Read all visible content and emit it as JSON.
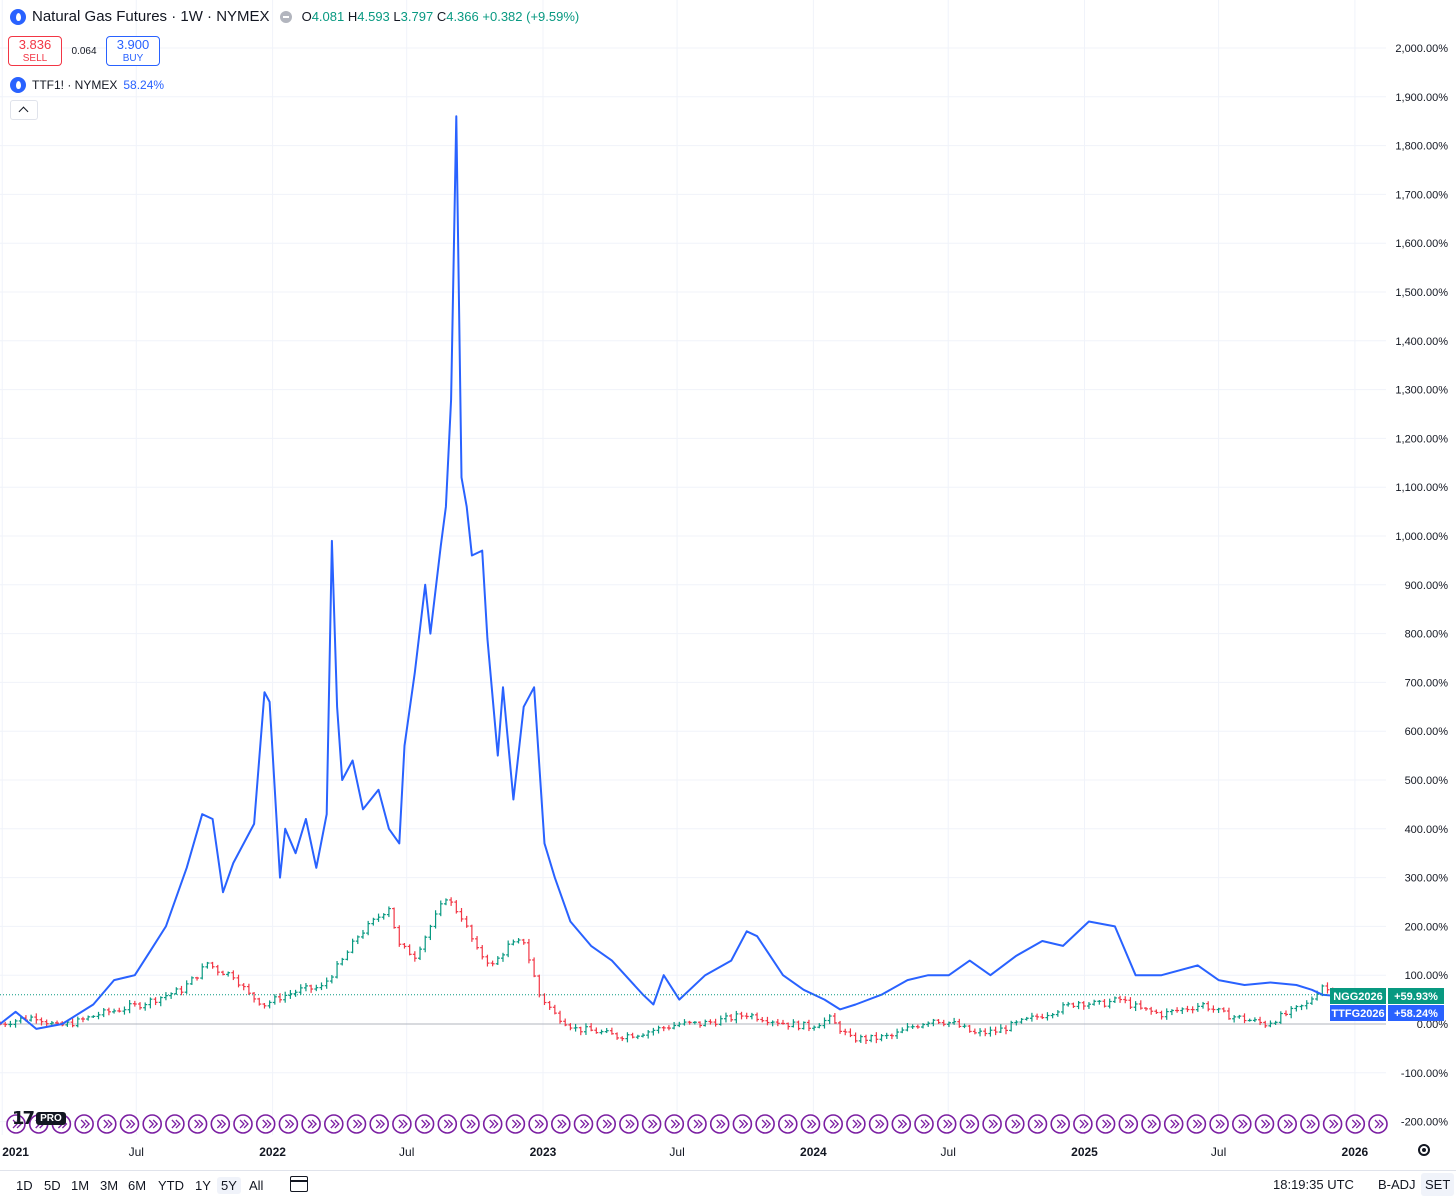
{
  "header": {
    "title": "Natural Gas Futures · 1W · NYMEX",
    "open_label": "O",
    "open": "4.081",
    "high_label": "H",
    "high": "4.593",
    "low_label": "L",
    "low": "3.797",
    "close_label": "C",
    "close": "4.366",
    "change": "+0.382 (+9.59%)"
  },
  "trade": {
    "sell_price": "3.836",
    "sell_label": "SELL",
    "spread": "0.064",
    "buy_price": "3.900",
    "buy_label": "BUY"
  },
  "compare": {
    "symbol": "TTF1! · NYMEX",
    "change": "58.24%"
  },
  "logo": {
    "badge": "PRO"
  },
  "bottom_bar": {
    "ranges": [
      "1D",
      "5D",
      "1M",
      "3M",
      "6M",
      "YTD",
      "1Y",
      "5Y",
      "All"
    ],
    "active_range": "5Y",
    "clock": "18:19:35 UTC",
    "badj": "B-ADJ",
    "session": "SET"
  },
  "colors": {
    "up": "#089981",
    "down": "#f23645",
    "ttf_line": "#2962ff",
    "ngg_label_bg": "#089981",
    "ttf_label_bg": "#2962ff",
    "event_icon": "#7b1fa2"
  },
  "chart_data": {
    "type": "line",
    "y_scale": "percent",
    "ylim": [
      -200,
      2000
    ],
    "y_ticks": [
      -200,
      -100,
      0,
      100,
      200,
      300,
      400,
      500,
      600,
      700,
      800,
      900,
      1000,
      1100,
      1200,
      1300,
      1400,
      1500,
      1600,
      1700,
      1800,
      1900,
      2000
    ],
    "y_tick_labels": [
      "-200.00%",
      "-100.00%",
      "0.00%",
      "100.00%",
      "200.00%",
      "300.00%",
      "400.00%",
      "500.00%",
      "600.00%",
      "700.00%",
      "800.00%",
      "900.00%",
      "1,000.00%",
      "1,100.00%",
      "1,200.00%",
      "1,300.00%",
      "1,400.00%",
      "1,500.00%",
      "1,600.00%",
      "1,700.00%",
      "1,800.00%",
      "1,900.00%",
      "2,000.00%"
    ],
    "x_tick_labels": [
      "2021",
      "Jul",
      "2022",
      "Jul",
      "2023",
      "Jul",
      "2024",
      "Jul",
      "2025",
      "Jul",
      "2026"
    ],
    "x_ticks": [
      "2021-01",
      "2021-07",
      "2022-01",
      "2022-07",
      "2023-01",
      "2023-07",
      "2024-01",
      "2024-07",
      "2025-01",
      "2025-07",
      "2026-01"
    ],
    "xlim": [
      "2020-12-29",
      "2026-02-12"
    ],
    "grid": true,
    "series": [
      {
        "name": "TTF1!",
        "kind": "line",
        "color": "#2962ff",
        "points": [
          [
            "2020-12-29",
            0
          ],
          [
            "2021-01-19",
            25
          ],
          [
            "2021-02-16",
            -10
          ],
          [
            "2021-03-23",
            0
          ],
          [
            "2021-05-04",
            40
          ],
          [
            "2021-06-01",
            90
          ],
          [
            "2021-06-29",
            100
          ],
          [
            "2021-07-20",
            150
          ],
          [
            "2021-08-10",
            200
          ],
          [
            "2021-09-07",
            320
          ],
          [
            "2021-09-28",
            430
          ],
          [
            "2021-10-12",
            420
          ],
          [
            "2021-10-26",
            270
          ],
          [
            "2021-11-09",
            330
          ],
          [
            "2021-12-07",
            410
          ],
          [
            "2021-12-21",
            680
          ],
          [
            "2021-12-28",
            660
          ],
          [
            "2022-01-11",
            300
          ],
          [
            "2022-01-18",
            400
          ],
          [
            "2022-02-01",
            350
          ],
          [
            "2022-02-15",
            420
          ],
          [
            "2022-03-01",
            320
          ],
          [
            "2022-03-15",
            430
          ],
          [
            "2022-03-22",
            990
          ],
          [
            "2022-03-29",
            650
          ],
          [
            "2022-04-05",
            500
          ],
          [
            "2022-04-19",
            540
          ],
          [
            "2022-05-03",
            440
          ],
          [
            "2022-05-24",
            480
          ],
          [
            "2022-06-07",
            400
          ],
          [
            "2022-06-21",
            370
          ],
          [
            "2022-06-28",
            570
          ],
          [
            "2022-07-12",
            720
          ],
          [
            "2022-07-26",
            900
          ],
          [
            "2022-08-02",
            800
          ],
          [
            "2022-08-16",
            980
          ],
          [
            "2022-08-23",
            1060
          ],
          [
            "2022-08-30",
            1280
          ],
          [
            "2022-09-06",
            1860
          ],
          [
            "2022-09-13",
            1120
          ],
          [
            "2022-09-20",
            1060
          ],
          [
            "2022-09-27",
            960
          ],
          [
            "2022-10-11",
            970
          ],
          [
            "2022-10-18",
            790
          ],
          [
            "2022-11-01",
            550
          ],
          [
            "2022-11-08",
            690
          ],
          [
            "2022-11-22",
            460
          ],
          [
            "2022-12-06",
            650
          ],
          [
            "2022-12-20",
            690
          ],
          [
            "2023-01-03",
            370
          ],
          [
            "2023-01-17",
            300
          ],
          [
            "2023-02-07",
            210
          ],
          [
            "2023-03-07",
            160
          ],
          [
            "2023-04-04",
            130
          ],
          [
            "2023-05-16",
            60
          ],
          [
            "2023-05-30",
            40
          ],
          [
            "2023-06-13",
            100
          ],
          [
            "2023-07-04",
            50
          ],
          [
            "2023-08-08",
            100
          ],
          [
            "2023-09-12",
            130
          ],
          [
            "2023-10-03",
            190
          ],
          [
            "2023-10-17",
            180
          ],
          [
            "2023-11-21",
            100
          ],
          [
            "2023-12-19",
            70
          ],
          [
            "2024-01-16",
            50
          ],
          [
            "2024-02-06",
            30
          ],
          [
            "2024-02-27",
            40
          ],
          [
            "2024-04-02",
            60
          ],
          [
            "2024-05-07",
            90
          ],
          [
            "2024-06-04",
            100
          ],
          [
            "2024-07-02",
            100
          ],
          [
            "2024-07-30",
            130
          ],
          [
            "2024-08-27",
            100
          ],
          [
            "2024-10-01",
            140
          ],
          [
            "2024-11-05",
            170
          ],
          [
            "2024-12-03",
            160
          ],
          [
            "2025-01-07",
            210
          ],
          [
            "2025-02-11",
            200
          ],
          [
            "2025-03-11",
            100
          ],
          [
            "2025-04-15",
            100
          ],
          [
            "2025-06-03",
            120
          ],
          [
            "2025-07-01",
            90
          ],
          [
            "2025-08-05",
            80
          ],
          [
            "2025-09-09",
            85
          ],
          [
            "2025-10-14",
            80
          ],
          [
            "2025-11-04",
            70
          ],
          [
            "2025-11-18",
            60
          ],
          [
            "2025-12-02",
            58.24
          ]
        ]
      },
      {
        "name": "NGG2026",
        "kind": "ohlc",
        "up_color": "#089981",
        "down_color": "#f23645",
        "closes": [
          [
            "2020-12-29",
            0
          ],
          [
            "2021-01-26",
            10
          ],
          [
            "2021-02-16",
            15
          ],
          [
            "2021-03-16",
            -5
          ],
          [
            "2021-04-13",
            5
          ],
          [
            "2021-05-11",
            20
          ],
          [
            "2021-06-08",
            30
          ],
          [
            "2021-07-06",
            40
          ],
          [
            "2021-08-03",
            55
          ],
          [
            "2021-08-31",
            70
          ],
          [
            "2021-09-21",
            100
          ],
          [
            "2021-10-05",
            125
          ],
          [
            "2021-10-19",
            110
          ],
          [
            "2021-11-09",
            100
          ],
          [
            "2021-11-30",
            60
          ],
          [
            "2021-12-21",
            40
          ],
          [
            "2022-01-11",
            55
          ],
          [
            "2022-02-08",
            70
          ],
          [
            "2022-03-08",
            75
          ],
          [
            "2022-04-05",
            130
          ],
          [
            "2022-04-26",
            180
          ],
          [
            "2022-05-17",
            210
          ],
          [
            "2022-06-07",
            240
          ],
          [
            "2022-06-21",
            160
          ],
          [
            "2022-07-12",
            140
          ],
          [
            "2022-08-02",
            200
          ],
          [
            "2022-08-23",
            260
          ],
          [
            "2022-09-13",
            220
          ],
          [
            "2022-10-04",
            150
          ],
          [
            "2022-10-25",
            120
          ],
          [
            "2022-11-15",
            160
          ],
          [
            "2022-12-06",
            170
          ],
          [
            "2022-12-27",
            60
          ],
          [
            "2023-01-17",
            20
          ],
          [
            "2023-02-14",
            -10
          ],
          [
            "2023-03-14",
            -15
          ],
          [
            "2023-04-11",
            -25
          ],
          [
            "2023-05-09",
            -20
          ],
          [
            "2023-06-06",
            -10
          ],
          [
            "2023-07-04",
            0
          ],
          [
            "2023-08-01",
            0
          ],
          [
            "2023-09-05",
            10
          ],
          [
            "2023-10-03",
            20
          ],
          [
            "2023-10-31",
            10
          ],
          [
            "2023-11-28",
            0
          ],
          [
            "2023-12-26",
            -5
          ],
          [
            "2024-01-23",
            10
          ],
          [
            "2024-02-20",
            -30
          ],
          [
            "2024-03-19",
            -30
          ],
          [
            "2024-04-16",
            -25
          ],
          [
            "2024-05-14",
            -5
          ],
          [
            "2024-06-11",
            10
          ],
          [
            "2024-07-09",
            0
          ],
          [
            "2024-08-06",
            -20
          ],
          [
            "2024-09-03",
            -15
          ],
          [
            "2024-10-01",
            0
          ],
          [
            "2024-10-29",
            15
          ],
          [
            "2024-11-26",
            30
          ],
          [
            "2024-12-24",
            45
          ],
          [
            "2025-01-21",
            40
          ],
          [
            "2025-02-18",
            50
          ],
          [
            "2025-03-18",
            30
          ],
          [
            "2025-04-15",
            20
          ],
          [
            "2025-05-13",
            30
          ],
          [
            "2025-06-10",
            40
          ],
          [
            "2025-07-08",
            20
          ],
          [
            "2025-08-05",
            10
          ],
          [
            "2025-09-02",
            0
          ],
          [
            "2025-09-30",
            20
          ],
          [
            "2025-10-28",
            40
          ],
          [
            "2025-11-18",
            80
          ],
          [
            "2025-12-02",
            59.93
          ]
        ]
      }
    ],
    "last_value_labels": [
      {
        "symbol": "NGG2026",
        "value": "+59.93%",
        "y": 59.93
      },
      {
        "symbol": "TTFG2026",
        "value": "+58.24%",
        "y": 58.24
      }
    ],
    "baseline": 0
  }
}
